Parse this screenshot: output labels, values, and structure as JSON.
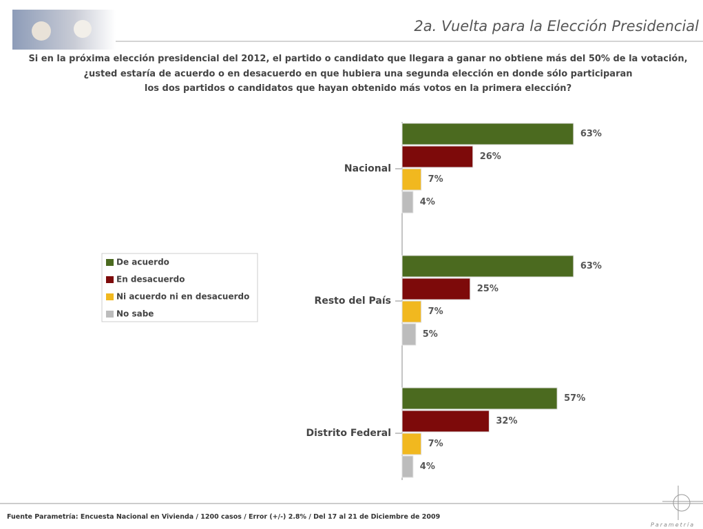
{
  "header": {
    "title": "2a. Vuelta para la Elección Presidencial"
  },
  "question": [
    "Si en la próxima elección presidencial del 2012, el partido o candidato que llegara a ganar no obtiene más del 50% de la votación,",
    "¿usted estaría de acuerdo o en desacuerdo en que hubiera una segunda elección en donde sólo participaran",
    "los dos partidos o candidatos que hayan obtenido más votos en la primera elección?"
  ],
  "chart_data": {
    "type": "hbar",
    "categories": [
      "Nacional",
      "Resto del País",
      "Distrito Federal"
    ],
    "series": [
      {
        "name": "De acuerdo",
        "color": "#4b6a1f",
        "values": [
          63,
          63,
          57
        ],
        "value_labels": [
          "63%",
          "63%",
          "57%"
        ]
      },
      {
        "name": "En desacuerdo",
        "color": "#7d0a0a",
        "values": [
          26,
          25,
          32
        ],
        "value_labels": [
          "26%",
          "25%",
          "32%"
        ]
      },
      {
        "name": "Ni acuerdo ni en desacuerdo",
        "color": "#f1b81f",
        "values": [
          7,
          7,
          7
        ],
        "value_labels": [
          "7%",
          "7%",
          "7%"
        ]
      },
      {
        "name": "No sabe",
        "color": "#bcbcbc",
        "values": [
          4,
          5,
          4
        ],
        "value_labels": [
          "4%",
          "5%",
          "4%"
        ]
      }
    ]
  },
  "footer": {
    "source": "Fuente Parametría: Encuesta Nacional en Vivienda / 1200 casos / Error (+/-) 2.8% / Del 17 al 21 de Diciembre de 2009",
    "logo": "Parametría"
  }
}
